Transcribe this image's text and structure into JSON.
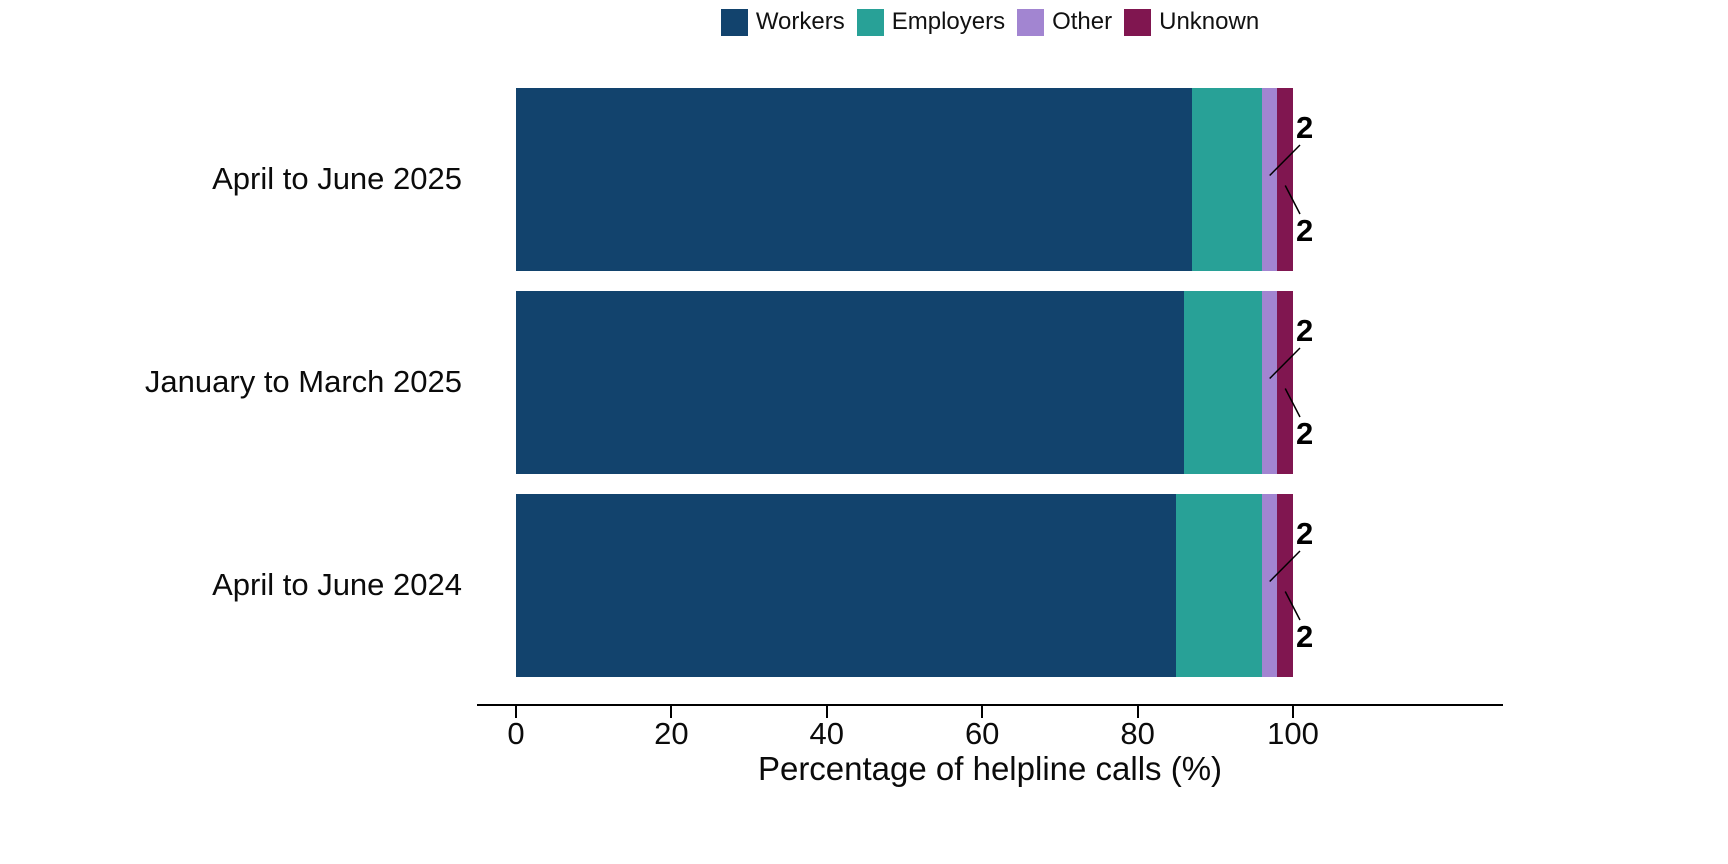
{
  "chart_data": {
    "type": "bar",
    "orientation": "horizontal",
    "stacked": true,
    "categories": [
      "April to June 2025",
      "January to March 2025",
      "April to June 2024"
    ],
    "series": [
      {
        "name": "Workers",
        "color": "#12436D",
        "values": [
          87,
          86,
          85
        ]
      },
      {
        "name": "Employers",
        "color": "#28A197",
        "values": [
          9,
          10,
          11
        ]
      },
      {
        "name": "Other",
        "color": "#A285D1",
        "values": [
          2,
          2,
          2
        ]
      },
      {
        "name": "Unknown",
        "color": "#801650",
        "values": [
          2,
          2,
          2
        ]
      }
    ],
    "xlabel": "Percentage of helpline calls (%)",
    "xticks": [
      0,
      20,
      40,
      60,
      80,
      100
    ],
    "xlim": [
      0,
      100
    ],
    "legend_position": "top",
    "grid": false,
    "value_label_color_inside": "#ffffff",
    "value_label_color_callout": "#000000",
    "axis_color": "#000000"
  }
}
